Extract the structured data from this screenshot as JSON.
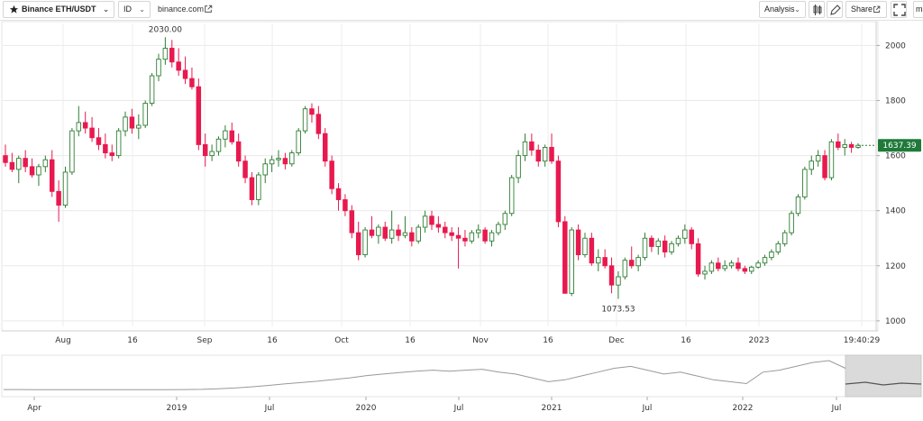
{
  "toolbar": {
    "symbol": "Binance ETH/USDT",
    "interval": "ID",
    "source": "binance.com",
    "analysis": "Analysis",
    "share": "Share",
    "ma": "ma"
  },
  "icons": {
    "favorite": "star-icon",
    "symbol_dropdown": "chevron-down-icon",
    "interval_dropdown": "chevron-down-icon",
    "source_link": "external-link-icon",
    "analysis_dropdown": "chevron-down-icon",
    "indicators": "candles-icon",
    "draw": "pencil-icon",
    "share_link": "external-link-icon",
    "fullscreen": "fullscreen-icon"
  },
  "colors": {
    "up": "#2e7d32",
    "down": "#e8194f",
    "last_price_badge": "#1f7a3a",
    "navigator_window": "#dadada"
  },
  "chart_data": {
    "type": "candlestick",
    "ylim": [
      980,
      2080
    ],
    "y_ticks": [
      "1000",
      "1200",
      "1400",
      "1600",
      "1800",
      "2000"
    ],
    "x_labels": [
      "Aug",
      "16",
      "Sep",
      "16",
      "Oct",
      "16",
      "Nov",
      "16",
      "Dec",
      "16",
      "2023",
      "19:40:29"
    ],
    "high_annotation": "2030.00",
    "low_annotation": "1073.53",
    "last_price": "1637.39",
    "candles": [
      [
        1600,
        1640,
        1560,
        1575
      ],
      [
        1575,
        1610,
        1540,
        1550
      ],
      [
        1550,
        1600,
        1500,
        1590
      ],
      [
        1590,
        1620,
        1540,
        1560
      ],
      [
        1560,
        1590,
        1520,
        1530
      ],
      [
        1530,
        1570,
        1490,
        1560
      ],
      [
        1560,
        1600,
        1540,
        1585
      ],
      [
        1585,
        1620,
        1450,
        1470
      ],
      [
        1470,
        1510,
        1360,
        1420
      ],
      [
        1420,
        1560,
        1410,
        1540
      ],
      [
        1540,
        1700,
        1530,
        1690
      ],
      [
        1690,
        1780,
        1670,
        1720
      ],
      [
        1720,
        1760,
        1680,
        1700
      ],
      [
        1700,
        1740,
        1650,
        1665
      ],
      [
        1665,
        1700,
        1620,
        1640
      ],
      [
        1640,
        1680,
        1590,
        1610
      ],
      [
        1610,
        1640,
        1580,
        1600
      ],
      [
        1600,
        1700,
        1590,
        1690
      ],
      [
        1690,
        1760,
        1670,
        1740
      ],
      [
        1740,
        1770,
        1680,
        1700
      ],
      [
        1700,
        1750,
        1660,
        1710
      ],
      [
        1710,
        1800,
        1700,
        1790
      ],
      [
        1790,
        1900,
        1780,
        1890
      ],
      [
        1890,
        1970,
        1870,
        1950
      ],
      [
        1950,
        2030,
        1930,
        1990
      ],
      [
        1990,
        2020,
        1920,
        1940
      ],
      [
        1940,
        1990,
        1890,
        1910
      ],
      [
        1910,
        1960,
        1860,
        1880
      ],
      [
        1880,
        1920,
        1840,
        1850
      ],
      [
        1850,
        1880,
        1620,
        1640
      ],
      [
        1640,
        1680,
        1560,
        1600
      ],
      [
        1600,
        1640,
        1580,
        1615
      ],
      [
        1615,
        1670,
        1600,
        1660
      ],
      [
        1660,
        1710,
        1630,
        1690
      ],
      [
        1690,
        1720,
        1640,
        1650
      ],
      [
        1650,
        1680,
        1560,
        1580
      ],
      [
        1580,
        1600,
        1500,
        1520
      ],
      [
        1520,
        1540,
        1420,
        1440
      ],
      [
        1440,
        1540,
        1420,
        1530
      ],
      [
        1530,
        1590,
        1500,
        1570
      ],
      [
        1570,
        1600,
        1540,
        1585
      ],
      [
        1585,
        1620,
        1560,
        1590
      ],
      [
        1590,
        1610,
        1550,
        1570
      ],
      [
        1570,
        1620,
        1560,
        1610
      ],
      [
        1610,
        1700,
        1600,
        1690
      ],
      [
        1690,
        1780,
        1680,
        1770
      ],
      [
        1770,
        1790,
        1720,
        1750
      ],
      [
        1750,
        1780,
        1660,
        1680
      ],
      [
        1680,
        1700,
        1560,
        1580
      ],
      [
        1580,
        1600,
        1460,
        1480
      ],
      [
        1480,
        1500,
        1400,
        1440
      ],
      [
        1440,
        1460,
        1380,
        1400
      ],
      [
        1400,
        1420,
        1300,
        1320
      ],
      [
        1320,
        1360,
        1220,
        1240
      ],
      [
        1240,
        1340,
        1230,
        1330
      ],
      [
        1330,
        1380,
        1300,
        1310
      ],
      [
        1310,
        1350,
        1280,
        1340
      ],
      [
        1340,
        1360,
        1290,
        1300
      ],
      [
        1300,
        1400,
        1280,
        1330
      ],
      [
        1330,
        1350,
        1290,
        1310
      ],
      [
        1310,
        1380,
        1300,
        1320
      ],
      [
        1320,
        1340,
        1270,
        1290
      ],
      [
        1290,
        1350,
        1280,
        1340
      ],
      [
        1340,
        1400,
        1320,
        1380
      ],
      [
        1380,
        1400,
        1330,
        1350
      ],
      [
        1350,
        1380,
        1320,
        1340
      ],
      [
        1340,
        1360,
        1300,
        1320
      ],
      [
        1320,
        1340,
        1290,
        1310
      ],
      [
        1310,
        1340,
        1190,
        1300
      ],
      [
        1300,
        1330,
        1270,
        1290
      ],
      [
        1290,
        1330,
        1280,
        1320
      ],
      [
        1320,
        1350,
        1300,
        1330
      ],
      [
        1330,
        1340,
        1280,
        1290
      ],
      [
        1290,
        1330,
        1270,
        1320
      ],
      [
        1320,
        1360,
        1310,
        1350
      ],
      [
        1350,
        1400,
        1330,
        1390
      ],
      [
        1390,
        1530,
        1380,
        1520
      ],
      [
        1520,
        1620,
        1500,
        1600
      ],
      [
        1600,
        1680,
        1580,
        1650
      ],
      [
        1650,
        1680,
        1600,
        1620
      ],
      [
        1620,
        1640,
        1560,
        1580
      ],
      [
        1580,
        1640,
        1560,
        1630
      ],
      [
        1630,
        1680,
        1570,
        1580
      ],
      [
        1580,
        1600,
        1340,
        1360
      ],
      [
        1360,
        1380,
        1100,
        1100
      ],
      [
        1100,
        1340,
        1090,
        1330
      ],
      [
        1330,
        1350,
        1220,
        1240
      ],
      [
        1240,
        1320,
        1230,
        1300
      ],
      [
        1300,
        1320,
        1200,
        1210
      ],
      [
        1210,
        1260,
        1180,
        1230
      ],
      [
        1230,
        1260,
        1190,
        1200
      ],
      [
        1200,
        1230,
        1100,
        1130
      ],
      [
        1130,
        1180,
        1080,
        1160
      ],
      [
        1160,
        1230,
        1150,
        1220
      ],
      [
        1220,
        1270,
        1190,
        1200
      ],
      [
        1200,
        1240,
        1180,
        1230
      ],
      [
        1230,
        1320,
        1220,
        1300
      ],
      [
        1300,
        1310,
        1250,
        1270
      ],
      [
        1270,
        1300,
        1240,
        1290
      ],
      [
        1290,
        1310,
        1230,
        1250
      ],
      [
        1250,
        1290,
        1240,
        1280
      ],
      [
        1280,
        1310,
        1270,
        1300
      ],
      [
        1300,
        1350,
        1280,
        1330
      ],
      [
        1330,
        1340,
        1260,
        1280
      ],
      [
        1280,
        1300,
        1160,
        1170
      ],
      [
        1170,
        1200,
        1150,
        1180
      ],
      [
        1180,
        1220,
        1170,
        1210
      ],
      [
        1210,
        1230,
        1180,
        1190
      ],
      [
        1190,
        1220,
        1180,
        1200
      ],
      [
        1200,
        1220,
        1190,
        1210
      ],
      [
        1210,
        1230,
        1180,
        1190
      ],
      [
        1190,
        1200,
        1170,
        1180
      ],
      [
        1180,
        1200,
        1170,
        1195
      ],
      [
        1195,
        1220,
        1190,
        1210
      ],
      [
        1210,
        1240,
        1200,
        1230
      ],
      [
        1230,
        1260,
        1220,
        1250
      ],
      [
        1250,
        1290,
        1240,
        1280
      ],
      [
        1280,
        1330,
        1270,
        1320
      ],
      [
        1320,
        1400,
        1310,
        1390
      ],
      [
        1390,
        1460,
        1380,
        1450
      ],
      [
        1450,
        1560,
        1440,
        1550
      ],
      [
        1550,
        1600,
        1530,
        1580
      ],
      [
        1580,
        1620,
        1560,
        1600
      ],
      [
        1600,
        1620,
        1510,
        1520
      ],
      [
        1520,
        1660,
        1510,
        1650
      ],
      [
        1650,
        1680,
        1620,
        1630
      ],
      [
        1630,
        1660,
        1600,
        1640
      ],
      [
        1640,
        1650,
        1610,
        1630
      ],
      [
        1630,
        1645,
        1625,
        1637.39
      ]
    ]
  },
  "navigator": {
    "labels": [
      "Apr",
      "2019",
      "Jul",
      "2020",
      "Jul",
      "2021",
      "Jul",
      "2022",
      "Jul"
    ],
    "history": [
      90,
      88,
      86,
      84,
      85,
      80,
      78,
      80,
      82,
      84,
      86,
      90,
      100,
      130,
      170,
      230,
      300,
      380,
      450,
      520,
      610,
      700,
      820,
      900,
      980,
      1050,
      1100,
      1050,
      1100,
      1150,
      1000,
      900,
      700,
      500,
      600,
      800,
      1000,
      1200,
      1300,
      1100,
      900,
      1000,
      800,
      600,
      500,
      400,
      1000,
      1100,
      1300,
      1500,
      1600,
      1200
    ]
  }
}
